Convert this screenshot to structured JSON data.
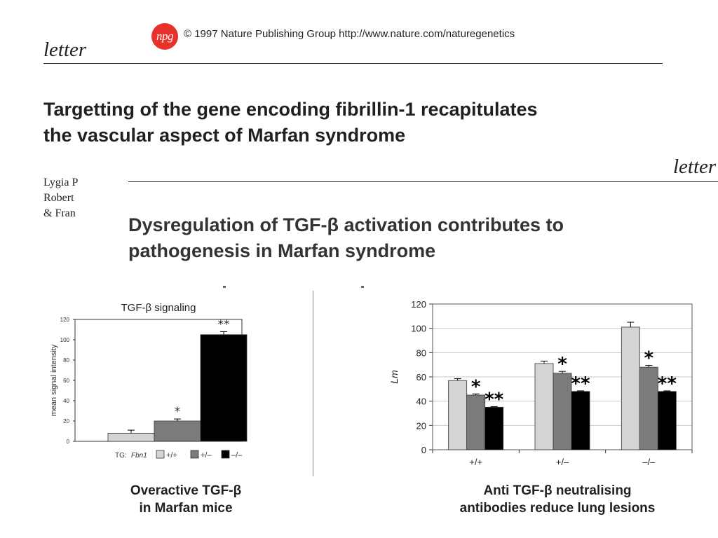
{
  "header": {
    "logo_text": "npg",
    "copyright": "© 1997 Nature Publishing Group  http://www.nature.com/naturegenetics",
    "section_label": "letter"
  },
  "paper1": {
    "title_line1": "Targetting of the gene encoding fibrillin-1 recapitulates",
    "title_line2": "the vascular aspect of Marfan syndrome",
    "authors": [
      "Lygia P",
      "Robert",
      "& Fran"
    ]
  },
  "paper2": {
    "section_label": "letter",
    "title_line1": "Dysregulation of TGF-β activation contributes to",
    "title_line2": "pathogenesis in Marfan syndrome"
  },
  "captions": {
    "left_line1": "Overactive TGF-β",
    "left_line2": "in Marfan mice",
    "right_line1": "Anti TGF-β neutralising",
    "right_line2": "antibodies reduce lung lesions"
  },
  "chart_data": [
    {
      "type": "bar",
      "title": "TGF-β signaling",
      "ylabel": "mean signal intensity",
      "xlabel": "",
      "ylim": [
        0,
        120
      ],
      "yticks": [
        0,
        20,
        40,
        60,
        80,
        100,
        120
      ],
      "legend_prefix": "TG: ",
      "legend_gene": "Fbn1",
      "categories": [
        "+/+",
        "+/–",
        "–/–"
      ],
      "values": [
        8,
        20,
        105
      ],
      "errors": [
        3,
        2,
        3
      ],
      "colors": [
        "#d4d4d4",
        "#7b7b7b",
        "#000000"
      ],
      "annotations": [
        "",
        "*",
        "**"
      ],
      "grid": false,
      "legend_position": "bottom"
    },
    {
      "type": "bar",
      "ylabel": "Lm",
      "ylim": [
        0,
        120
      ],
      "yticks": [
        0,
        20,
        40,
        60,
        80,
        100,
        120
      ],
      "categories": [
        "+/+",
        "+/–",
        "–/–"
      ],
      "series": [
        {
          "values": [
            57,
            71,
            101
          ],
          "errors": [
            1.5,
            2,
            4
          ],
          "annotations": [
            "",
            "",
            ""
          ],
          "color": "#d4d4d4"
        },
        {
          "values": [
            45,
            63,
            68
          ],
          "errors": [
            1,
            1.5,
            1.5
          ],
          "annotations": [
            "*",
            "*",
            "*"
          ],
          "color": "#7b7b7b"
        },
        {
          "values": [
            35,
            48,
            48
          ],
          "errors": [
            0.5,
            0.5,
            0.5
          ],
          "annotations": [
            "**",
            "**",
            "**"
          ],
          "color": "#000000"
        }
      ],
      "grid": true,
      "legend_position": "none"
    }
  ]
}
